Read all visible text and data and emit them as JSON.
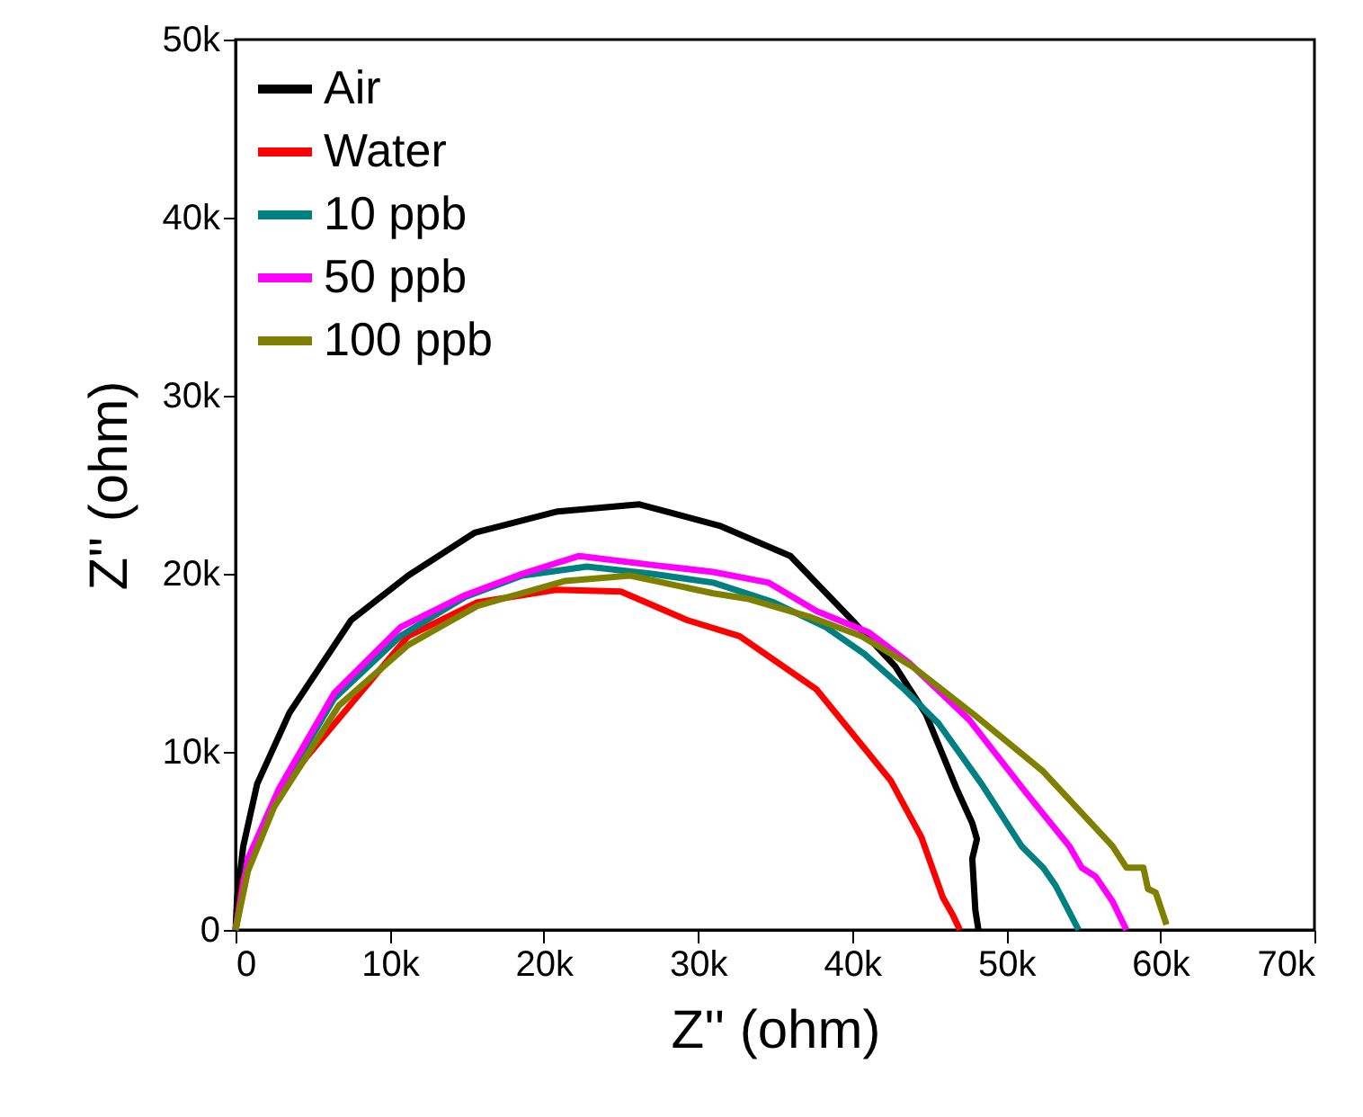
{
  "chart_data": {
    "type": "line",
    "xlabel": "Z'' (ohm)",
    "ylabel": "Z''  (ohm)",
    "xlim": [
      0,
      70000
    ],
    "ylim": [
      0,
      50000
    ],
    "xticks": [
      0,
      {
        "value": 10000,
        "label": "10k"
      },
      {
        "value": 20000,
        "label": "20k"
      },
      {
        "value": 30000,
        "label": "30k"
      },
      {
        "value": 40000,
        "label": "40k"
      },
      {
        "value": 50000,
        "label": "50k"
      },
      {
        "value": 60000,
        "label": "60k"
      },
      {
        "value": 70000,
        "label": "70k"
      }
    ],
    "yticks": [
      0,
      {
        "value": 10000,
        "label": "10k"
      },
      {
        "value": 20000,
        "label": "20k"
      },
      {
        "value": 30000,
        "label": "30k"
      },
      {
        "value": 40000,
        "label": "40k"
      },
      {
        "value": 50000,
        "label": "50k"
      }
    ],
    "legend": "top left",
    "grid": false,
    "marker": "none",
    "line_style": "solid",
    "series": [
      {
        "name": "Air",
        "color": "#000000",
        "x": [
          0,
          100,
          500,
          1400,
          3500,
          7500,
          11200,
          15500,
          20900,
          26200,
          31400,
          36000,
          40000,
          42800,
          44800,
          46800,
          47800,
          48100,
          47800,
          48000,
          48200
        ],
        "values": [
          0,
          1800,
          4700,
          8200,
          12200,
          17400,
          19900,
          22300,
          23500,
          23900,
          22700,
          21000,
          17400,
          14800,
          12100,
          7900,
          6000,
          5100,
          4000,
          1100,
          0
        ]
      },
      {
        "name": "Water",
        "color": "#ff0000",
        "x": [
          0,
          500,
          2200,
          4500,
          7800,
          11200,
          15700,
          20800,
          25000,
          29300,
          32700,
          37700,
          42500,
          44500,
          45900,
          46500,
          47000
        ],
        "values": [
          0,
          2800,
          6700,
          9600,
          13000,
          16500,
          18400,
          19100,
          19000,
          17400,
          16500,
          13500,
          8400,
          5200,
          1800,
          900,
          0
        ]
      },
      {
        "name": "10 ppb",
        "color": "#008080",
        "x": [
          0,
          800,
          2800,
          6400,
          10700,
          14900,
          18600,
          22800,
          27000,
          31000,
          34900,
          38300,
          40800,
          43400,
          45600,
          48400,
          51000,
          52400,
          53200,
          54700
        ],
        "values": [
          0,
          3800,
          7700,
          13000,
          16500,
          18700,
          19900,
          20400,
          20000,
          19500,
          18400,
          17000,
          15500,
          13500,
          11600,
          8200,
          4700,
          3500,
          2500,
          0
        ]
      },
      {
        "name": "50 ppb",
        "color": "#ff00ff",
        "x": [
          0,
          800,
          2800,
          6400,
          10700,
          14900,
          18600,
          22300,
          27000,
          31000,
          34600,
          37700,
          41100,
          43700,
          47600,
          51300,
          54100,
          54900,
          55800,
          56900,
          57800
        ],
        "values": [
          0,
          4000,
          7900,
          13300,
          17000,
          18800,
          20000,
          21000,
          20500,
          20100,
          19500,
          17900,
          16700,
          15000,
          11800,
          7700,
          4700,
          3500,
          3000,
          1600,
          0
        ]
      },
      {
        "name": "100 ppb",
        "color": "#808000",
        "x": [
          0,
          800,
          2500,
          6700,
          11200,
          15700,
          21400,
          25600,
          31000,
          33200,
          37200,
          40600,
          43900,
          47900,
          52400,
          56900,
          57800,
          58900,
          59200,
          59700,
          60400
        ],
        "values": [
          0,
          3300,
          6900,
          12600,
          16000,
          18200,
          19600,
          19900,
          18900,
          18600,
          17600,
          16500,
          14800,
          12100,
          8900,
          4700,
          3500,
          3500,
          2300,
          2100,
          300
        ]
      }
    ]
  }
}
